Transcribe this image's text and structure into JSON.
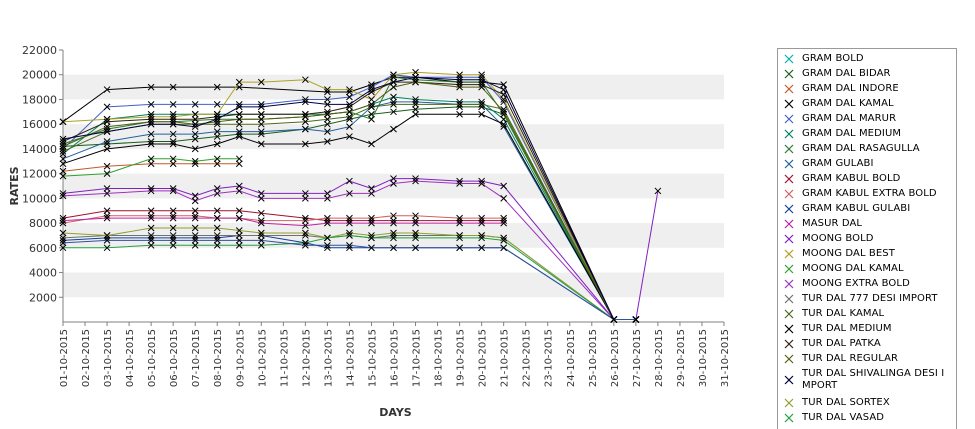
{
  "chart_data": {
    "type": "line",
    "title": "",
    "xlabel": "DAYS",
    "ylabel": "RATES",
    "ylim": [
      0,
      22000
    ],
    "yticks": [
      2000,
      4000,
      6000,
      8000,
      10000,
      12000,
      14000,
      16000,
      18000,
      20000,
      22000
    ],
    "grid": "horizontal alternating bands",
    "legend_position": "right",
    "categories": [
      "01-10-2015",
      "02-10-2015",
      "03-10-2015",
      "04-10-2015",
      "05-10-2015",
      "06-10-2015",
      "07-10-2015",
      "08-10-2015",
      "09-10-2015",
      "10-10-2015",
      "11-10-2015",
      "12-10-2015",
      "13-10-2015",
      "14-10-2015",
      "15-10-2015",
      "16-10-2015",
      "17-10-2015",
      "18-10-2015",
      "19-10-2015",
      "20-10-2015",
      "21-10-2015",
      "22-10-2015",
      "23-10-2015",
      "24-10-2015",
      "25-10-2015",
      "26-10-2015",
      "27-10-2015",
      "28-10-2015",
      "29-10-2015",
      "30-10-2015",
      "31-10-2015"
    ],
    "series": [
      {
        "name": "GRAM BOLD",
        "color": "#00b0b0",
        "values": [
          null,
          null,
          null,
          null,
          null,
          null,
          null,
          null,
          null,
          null,
          null,
          null,
          null,
          null,
          null,
          null,
          null,
          null,
          null,
          null,
          null,
          null,
          null,
          null,
          null,
          null,
          null,
          null,
          null,
          null,
          null
        ]
      },
      {
        "name": "GRAM DAL BIDAR",
        "color": "#1a5e1a",
        "values": [
          14200,
          null,
          14400,
          null,
          14600,
          14600,
          14800,
          15000,
          15200,
          15200,
          null,
          15600,
          16000,
          16400,
          16800,
          17000,
          17200,
          null,
          17400,
          17400,
          16800,
          null,
          null,
          null,
          null,
          200,
          200,
          null,
          null,
          null,
          null
        ]
      },
      {
        "name": "GRAM DAL INDORE",
        "color": "#c05a2a",
        "values": [
          12200,
          null,
          12600,
          null,
          12800,
          12800,
          12800,
          12800,
          12800,
          null,
          null,
          null,
          null,
          null,
          null,
          null,
          null,
          null,
          null,
          null,
          null,
          null,
          null,
          null,
          null,
          null,
          null,
          null,
          null,
          null,
          null
        ]
      },
      {
        "name": "GRAM DAL KAMAL",
        "color": "#000000",
        "values": [
          16200,
          null,
          18800,
          null,
          19000,
          19000,
          null,
          19000,
          19000,
          null,
          null,
          null,
          18600,
          18600,
          19200,
          19800,
          19800,
          null,
          19400,
          19400,
          19200,
          null,
          null,
          null,
          null,
          200,
          200,
          null,
          null,
          null,
          null
        ]
      },
      {
        "name": "GRAM DAL MARUR",
        "color": "#4060c8",
        "values": [
          14000,
          null,
          17400,
          null,
          17600,
          17600,
          17600,
          17600,
          17600,
          17600,
          null,
          18000,
          18000,
          18200,
          19000,
          20000,
          19800,
          null,
          19800,
          19800,
          17800,
          null,
          null,
          null,
          null,
          200,
          200,
          null,
          null,
          null,
          null
        ]
      },
      {
        "name": "GRAM DAL MEDIUM",
        "color": "#008060",
        "values": [
          13600,
          null,
          16400,
          null,
          16800,
          16800,
          16800,
          16800,
          16800,
          16800,
          null,
          16800,
          16800,
          17000,
          17600,
          18200,
          18000,
          null,
          17800,
          17800,
          16400,
          null,
          null,
          null,
          null,
          200,
          200,
          null,
          null,
          null,
          null
        ]
      },
      {
        "name": "GRAM DAL RASAGULLA",
        "color": "#2a7a2a",
        "values": [
          14400,
          null,
          15600,
          null,
          16200,
          16200,
          null,
          16400,
          16400,
          16400,
          null,
          16600,
          16800,
          17000,
          16400,
          19800,
          19600,
          null,
          19400,
          19400,
          16800,
          null,
          null,
          null,
          null,
          200,
          200,
          null,
          null,
          null,
          null
        ]
      },
      {
        "name": "GRAM GULABI",
        "color": "#2060a0",
        "values": [
          13200,
          null,
          14600,
          null,
          15200,
          15200,
          15200,
          15400,
          15400,
          15400,
          null,
          15600,
          15400,
          15800,
          17400,
          17800,
          17800,
          null,
          17600,
          17600,
          15800,
          null,
          null,
          null,
          null,
          200,
          200,
          null,
          null,
          null,
          null
        ]
      },
      {
        "name": "GRAM KABUL BOLD",
        "color": "#a01030",
        "values": [
          8400,
          null,
          9000,
          null,
          9000,
          9000,
          9000,
          9000,
          9000,
          8800,
          null,
          8400,
          8200,
          8200,
          8200,
          8200,
          8200,
          null,
          8200,
          8200,
          8200,
          null,
          null,
          null,
          null,
          null,
          null,
          null,
          null,
          null,
          null
        ]
      },
      {
        "name": "GRAM KABUL EXTRA BOLD",
        "color": "#d06060",
        "values": [
          8000,
          null,
          8600,
          null,
          8600,
          8600,
          8600,
          8400,
          8400,
          8200,
          null,
          8200,
          8400,
          8400,
          8400,
          8600,
          8600,
          null,
          8400,
          8400,
          8400,
          null,
          null,
          null,
          null,
          null,
          null,
          null,
          null,
          null,
          null
        ]
      },
      {
        "name": "GRAM KABUL GULABI",
        "color": "#1040a0",
        "values": [
          6600,
          null,
          6800,
          null,
          6800,
          6800,
          6800,
          6800,
          7000,
          7000,
          null,
          6400,
          6000,
          6000,
          6000,
          6000,
          6000,
          null,
          6000,
          6000,
          6000,
          null,
          null,
          null,
          null,
          200,
          200,
          null,
          null,
          null,
          null
        ]
      },
      {
        "name": "MASUR DAL",
        "color": "#c020a0",
        "values": [
          8200,
          null,
          8400,
          null,
          8400,
          8400,
          8400,
          8400,
          8400,
          8000,
          null,
          7800,
          8000,
          8000,
          8000,
          8000,
          8000,
          null,
          8000,
          8000,
          8000,
          null,
          null,
          null,
          null,
          null,
          null,
          null,
          null,
          null,
          null
        ]
      },
      {
        "name": "MOONG BOLD",
        "color": "#8020c0",
        "values": [
          10400,
          null,
          10800,
          null,
          10800,
          10800,
          10200,
          10800,
          11000,
          10400,
          null,
          10400,
          10400,
          11400,
          10800,
          11600,
          11600,
          null,
          11400,
          11400,
          11000,
          null,
          null,
          null,
          null,
          200,
          200,
          10600,
          null,
          null,
          null
        ]
      },
      {
        "name": "MOONG DAL BEST",
        "color": "#b0a020",
        "values": [
          16200,
          null,
          16400,
          null,
          16600,
          16600,
          16800,
          16800,
          19400,
          19400,
          null,
          19600,
          18800,
          18800,
          18000,
          20000,
          20200,
          null,
          20000,
          20000,
          18000,
          null,
          null,
          null,
          null,
          200,
          200,
          null,
          null,
          null,
          null
        ]
      },
      {
        "name": "MOONG DAL KAMAL",
        "color": "#30a030",
        "values": [
          11800,
          null,
          12000,
          null,
          13200,
          13200,
          13000,
          13200,
          13200,
          null,
          null,
          null,
          null,
          null,
          null,
          null,
          null,
          null,
          null,
          null,
          null,
          null,
          null,
          null,
          null,
          null,
          null,
          null,
          null,
          null,
          null
        ]
      },
      {
        "name": "MOONG EXTRA BOLD",
        "color": "#a030c0",
        "values": [
          10200,
          null,
          10400,
          null,
          10600,
          10600,
          9800,
          10400,
          10600,
          10000,
          null,
          10000,
          10000,
          10400,
          10400,
          11200,
          11400,
          null,
          11200,
          11200,
          10000,
          null,
          null,
          null,
          null,
          200,
          200,
          null,
          null,
          null,
          null
        ]
      },
      {
        "name": "TUR DAL  777 DESI IMPORT",
        "color": "#707070",
        "values": [
          6800,
          null,
          7000,
          null,
          7000,
          7000,
          7000,
          7000,
          7000,
          7000,
          null,
          7000,
          6800,
          7000,
          6800,
          7000,
          7000,
          null,
          7000,
          7000,
          6800,
          null,
          null,
          null,
          null,
          200,
          200,
          null,
          null,
          null,
          null
        ]
      },
      {
        "name": "TUR DAL KAMAL",
        "color": "#4a6a1a",
        "values": [
          13800,
          null,
          15400,
          null,
          16000,
          16000,
          16000,
          16000,
          16000,
          16000,
          null,
          16200,
          16400,
          16600,
          17400,
          17600,
          17600,
          null,
          17600,
          17600,
          17200,
          null,
          null,
          null,
          null,
          200,
          200,
          null,
          null,
          null,
          null
        ]
      },
      {
        "name": "TUR DAL MEDIUM",
        "color": "#000000",
        "values": [
          12800,
          null,
          14000,
          null,
          14400,
          14400,
          14000,
          14400,
          15000,
          14400,
          null,
          14400,
          14600,
          15000,
          14400,
          15600,
          16800,
          null,
          16800,
          16800,
          16000,
          null,
          null,
          null,
          null,
          200,
          200,
          null,
          null,
          null,
          null
        ]
      },
      {
        "name": "TUR DAL PATKA",
        "color": "#302010",
        "values": [
          14600,
          null,
          16200,
          null,
          16400,
          16400,
          16400,
          16600,
          16800,
          16800,
          null,
          16800,
          17000,
          17400,
          18600,
          19400,
          19400,
          null,
          19200,
          19200,
          18400,
          null,
          null,
          null,
          null,
          200,
          200,
          null,
          null,
          null,
          null
        ]
      },
      {
        "name": "TUR DAL REGULAR",
        "color": "#506010",
        "values": [
          14200,
          null,
          15800,
          null,
          16200,
          16200,
          16000,
          16200,
          16400,
          16400,
          null,
          16600,
          16800,
          17000,
          17600,
          19000,
          19400,
          null,
          19000,
          19000,
          17000,
          null,
          null,
          null,
          null,
          200,
          200,
          null,
          null,
          null,
          null
        ]
      },
      {
        "name": "TUR DAL SHIVALINGA DESI IMPORT",
        "color": "#000040",
        "values": [
          14800,
          null,
          15400,
          null,
          16000,
          16000,
          15800,
          16400,
          17400,
          17400,
          null,
          17800,
          17600,
          17600,
          18800,
          19400,
          19800,
          null,
          19600,
          19600,
          18800,
          null,
          null,
          null,
          null,
          200,
          200,
          null,
          null,
          null,
          null
        ]
      },
      {
        "name": "TUR DAL SORTEX",
        "color": "#90a030",
        "values": [
          7200,
          null,
          7000,
          null,
          7600,
          7600,
          7600,
          7600,
          7400,
          7200,
          null,
          7200,
          6800,
          7200,
          7000,
          7200,
          7200,
          null,
          7000,
          7000,
          6800,
          null,
          null,
          null,
          null,
          200,
          200,
          null,
          null,
          null,
          null
        ]
      },
      {
        "name": "TUR DAL VASAD",
        "color": "#20a040",
        "values": [
          6000,
          null,
          6000,
          null,
          6200,
          6200,
          6200,
          6200,
          6200,
          6200,
          null,
          6400,
          6800,
          7000,
          6800,
          6800,
          6800,
          null,
          6800,
          6800,
          6600,
          null,
          null,
          null,
          null,
          200,
          200,
          null,
          null,
          null,
          null
        ]
      },
      {
        "name": "",
        "color": "#30509a",
        "values": [
          6400,
          null,
          6600,
          null,
          6600,
          6600,
          6600,
          6600,
          6600,
          6600,
          null,
          6200,
          6200,
          6200,
          6000,
          6000,
          6000,
          null,
          6000,
          6000,
          6000,
          null,
          null,
          null,
          null,
          200,
          200,
          null,
          null,
          null,
          null
        ]
      }
    ]
  },
  "legend": {
    "items": [
      {
        "label": "GRAM BOLD",
        "color": "#00b0b0",
        "marker": "x"
      },
      {
        "label": "GRAM DAL BIDAR",
        "color": "#1a5e1a",
        "marker": "x"
      },
      {
        "label": "GRAM DAL INDORE",
        "color": "#c05a2a",
        "marker": "x"
      },
      {
        "label": "GRAM DAL KAMAL",
        "color": "#000000",
        "marker": "x"
      },
      {
        "label": "GRAM DAL MARUR",
        "color": "#4060c8",
        "marker": "x"
      },
      {
        "label": "GRAM DAL MEDIUM",
        "color": "#008060",
        "marker": "x"
      },
      {
        "label": "GRAM DAL RASAGULLA",
        "color": "#2a7a2a",
        "marker": "x"
      },
      {
        "label": "GRAM GULABI",
        "color": "#2060a0",
        "marker": "x"
      },
      {
        "label": "GRAM KABUL BOLD",
        "color": "#a01030",
        "marker": "x"
      },
      {
        "label": "GRAM KABUL EXTRA BOLD",
        "color": "#d06060",
        "marker": "x"
      },
      {
        "label": "GRAM KABUL GULABI",
        "color": "#1040a0",
        "marker": "x"
      },
      {
        "label": "MASUR DAL",
        "color": "#c020a0",
        "marker": "x"
      },
      {
        "label": "MOONG BOLD",
        "color": "#8020c0",
        "marker": "x"
      },
      {
        "label": "MOONG DAL BEST",
        "color": "#b0a020",
        "marker": "x"
      },
      {
        "label": "MOONG DAL KAMAL",
        "color": "#30a030",
        "marker": "x"
      },
      {
        "label": "MOONG EXTRA BOLD",
        "color": "#a030c0",
        "marker": "x"
      },
      {
        "label": "TUR DAL  777 DESI IMPORT",
        "color": "#707070",
        "marker": "x"
      },
      {
        "label": "TUR DAL KAMAL",
        "color": "#4a6a1a",
        "marker": "x"
      },
      {
        "label": "TUR DAL MEDIUM",
        "color": "#000000",
        "marker": "x"
      },
      {
        "label": "TUR DAL PATKA",
        "color": "#302010",
        "marker": "x"
      },
      {
        "label": "TUR DAL REGULAR",
        "color": "#506010",
        "marker": "x"
      },
      {
        "label": "TUR DAL SHIVALINGA DESI I MPORT",
        "color": "#000040",
        "marker": "x"
      },
      {
        "label": "TUR DAL SORTEX",
        "color": "#90a030",
        "marker": "x"
      },
      {
        "label": "TUR DAL VASAD",
        "color": "#20a040",
        "marker": "x"
      }
    ]
  }
}
